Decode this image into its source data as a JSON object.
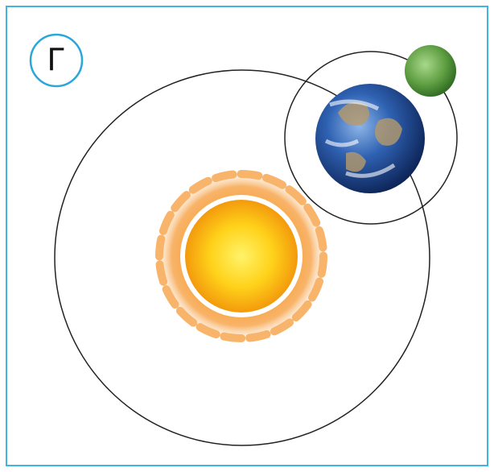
{
  "label": "Г"
}
